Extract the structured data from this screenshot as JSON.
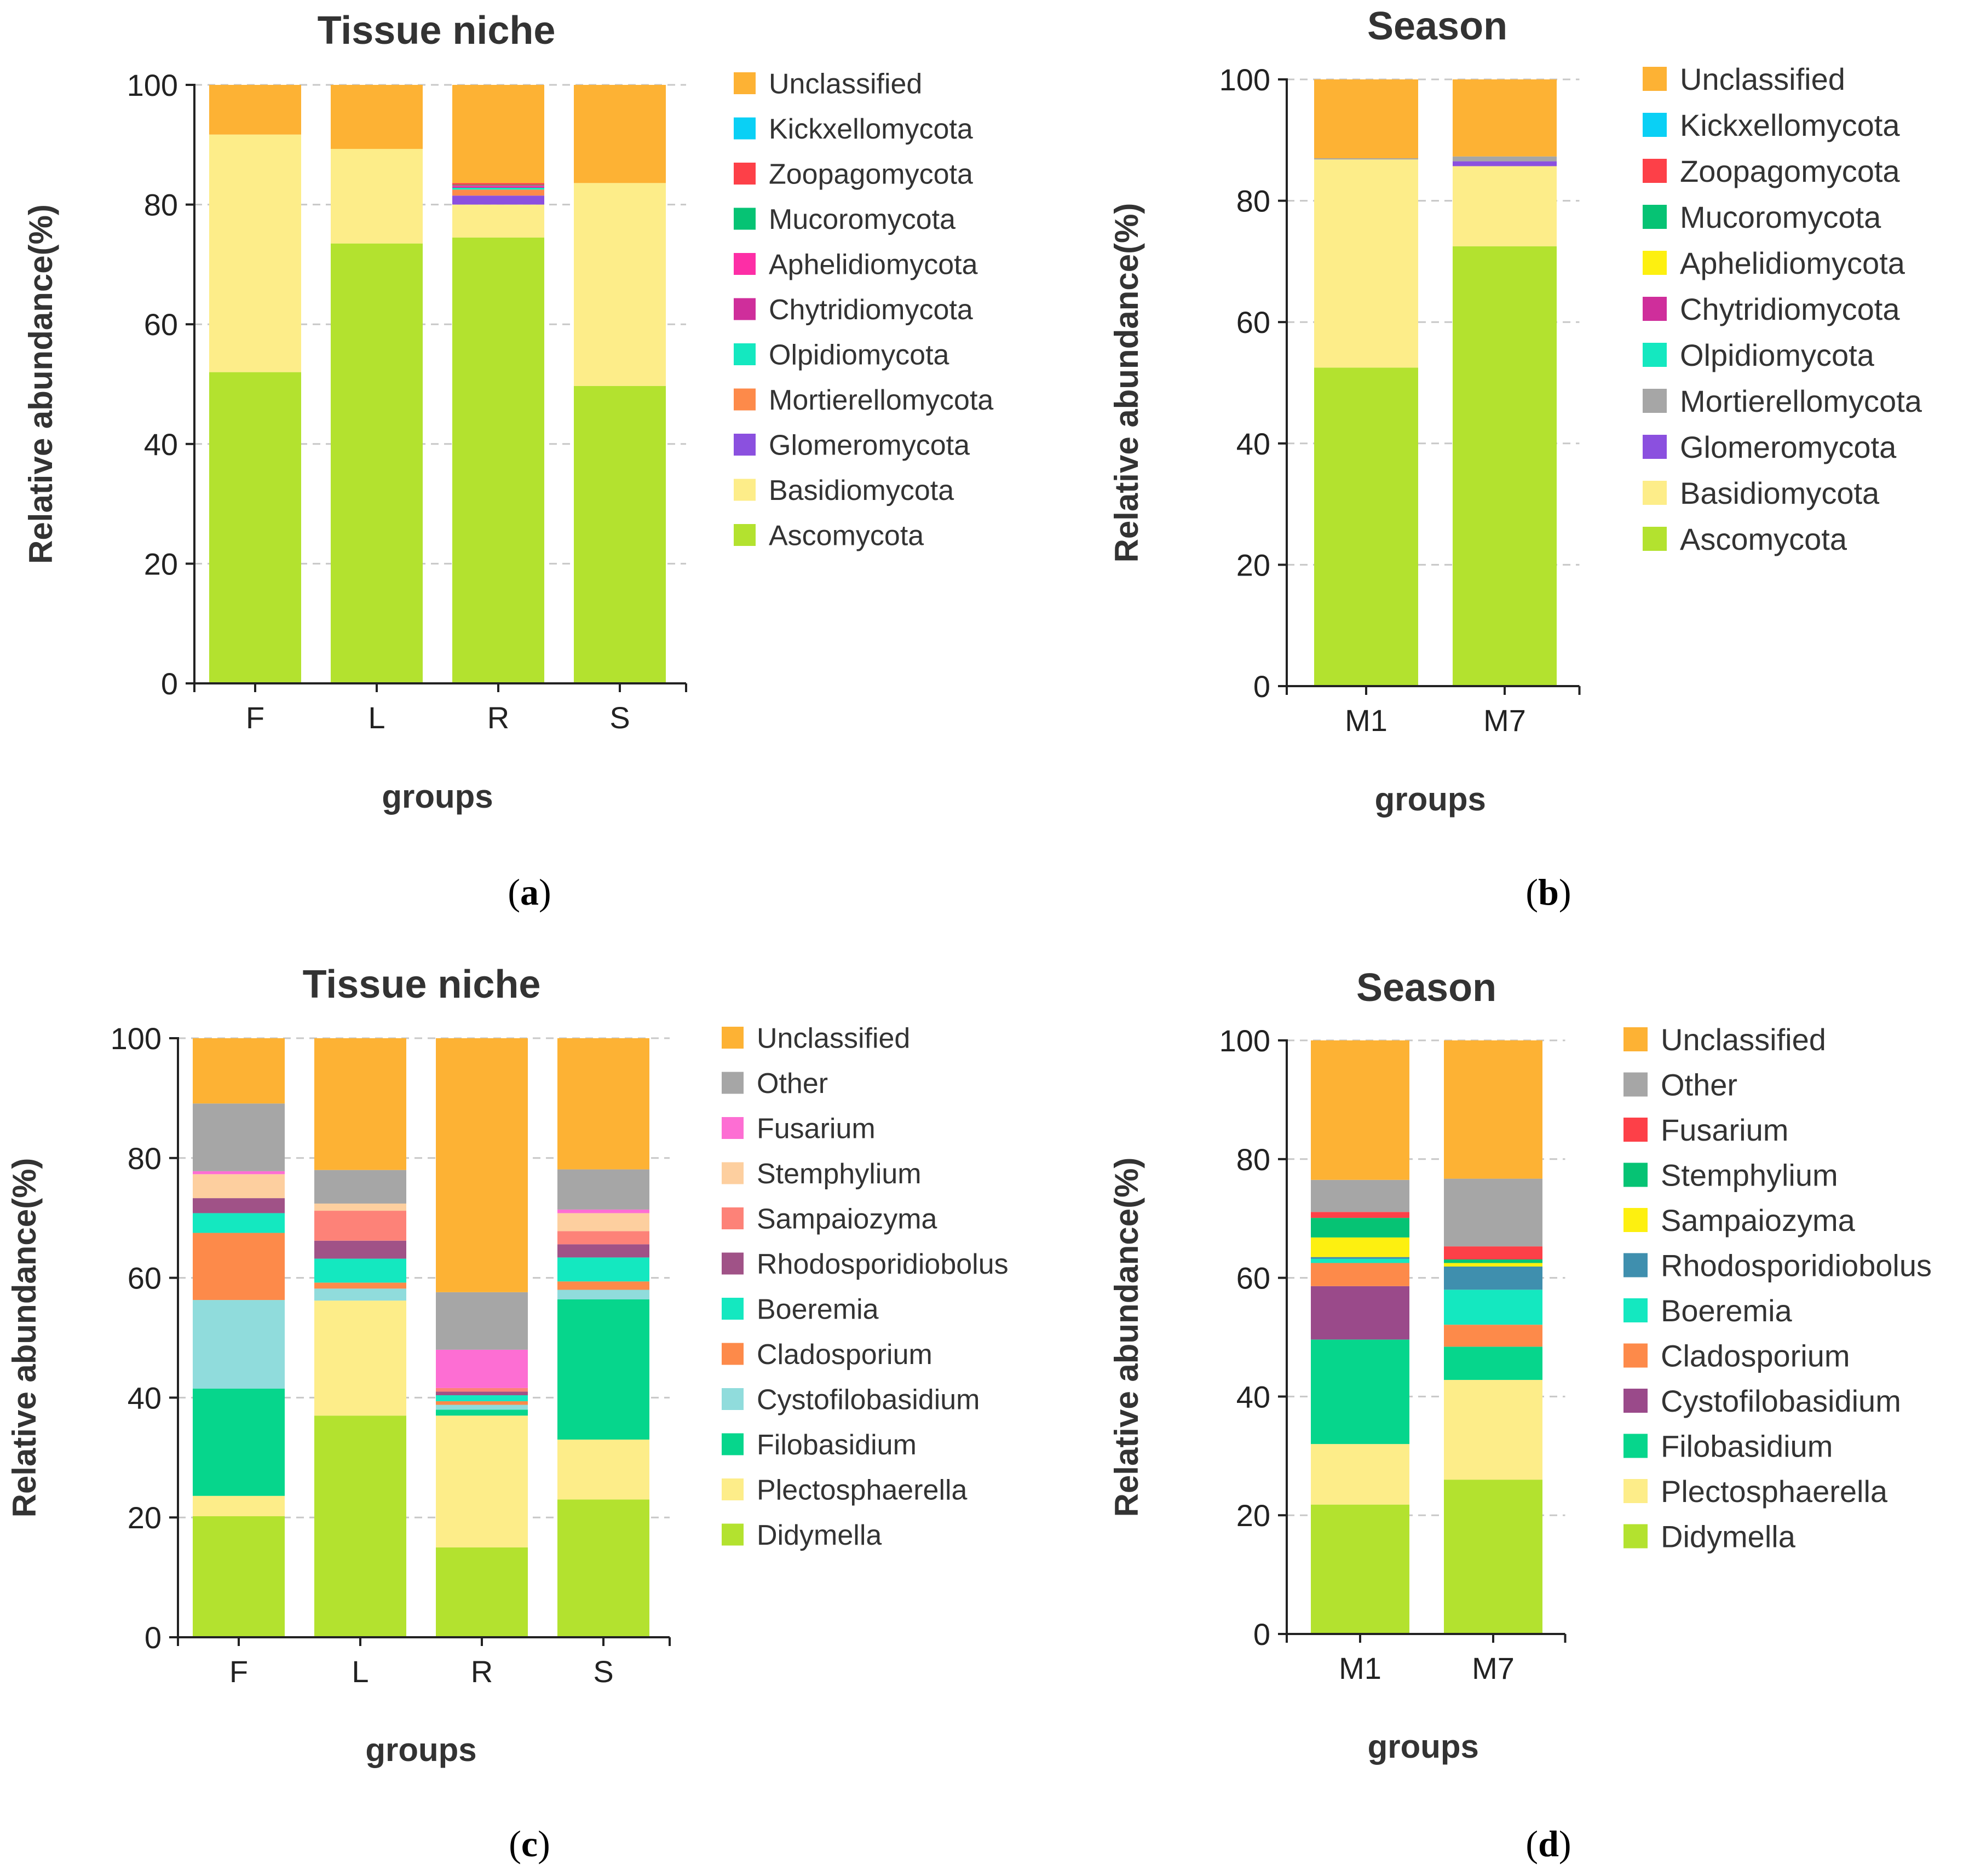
{
  "captions": {
    "a": "a",
    "b": "b",
    "c": "c",
    "d": "d"
  },
  "chart_data": [
    {
      "panel": "a",
      "type": "bar",
      "stacked": true,
      "title": "Tissue niche",
      "xlabel": "groups",
      "ylabel": "Relative abundance(%)",
      "ylim": [
        0,
        100
      ],
      "yticks": [
        0,
        20,
        40,
        60,
        80,
        100
      ],
      "grid": "dashed horizontal",
      "legend_position": "right",
      "categories": [
        "F",
        "L",
        "R",
        "S"
      ],
      "series": [
        {
          "name": "Ascomycota",
          "color": "#b3e22f",
          "values": [
            52.0,
            73.5,
            74.5,
            49.7
          ]
        },
        {
          "name": "Basidiomycota",
          "color": "#fded89",
          "values": [
            39.7,
            15.8,
            5.5,
            33.9
          ]
        },
        {
          "name": "Glomeromycota",
          "color": "#8b50df",
          "values": [
            0.0,
            0.0,
            1.5,
            0.0
          ]
        },
        {
          "name": "Mortierellomycota",
          "color": "#fd8a4a",
          "values": [
            0.0,
            0.0,
            1.0,
            0.0
          ]
        },
        {
          "name": "Olpidiomycota",
          "color": "#14e8c0",
          "values": [
            0.0,
            0.0,
            0.3,
            0.0
          ]
        },
        {
          "name": "Chytridiomycota",
          "color": "#cf2e9b",
          "values": [
            0.0,
            0.0,
            0.2,
            0.0
          ]
        },
        {
          "name": "Aphelidiomycota",
          "color": "#fd2ea6",
          "values": [
            0.0,
            0.0,
            0.2,
            0.0
          ]
        },
        {
          "name": "Mucoromycota",
          "color": "#06c374",
          "values": [
            0.0,
            0.0,
            0.1,
            0.0
          ]
        },
        {
          "name": "Zoopagomycota",
          "color": "#fd4048",
          "values": [
            0.0,
            0.0,
            0.3,
            0.0
          ]
        },
        {
          "name": "Kickxellomycota",
          "color": "#0ad0f5",
          "values": [
            0.0,
            0.0,
            0.0,
            0.0
          ]
        },
        {
          "name": "Unclassified",
          "color": "#fdb234",
          "values": [
            8.3,
            10.7,
            16.4,
            16.4
          ]
        }
      ]
    },
    {
      "panel": "b",
      "type": "bar",
      "stacked": true,
      "title": "Season",
      "xlabel": "groups",
      "ylabel": "Relative abundance(%)",
      "ylim": [
        0,
        100
      ],
      "yticks": [
        0,
        20,
        40,
        60,
        80,
        100
      ],
      "grid": "dashed horizontal",
      "legend_position": "right",
      "categories": [
        "M1",
        "M7"
      ],
      "series": [
        {
          "name": "Ascomycota",
          "color": "#b3e22f",
          "values": [
            52.5,
            72.5
          ]
        },
        {
          "name": "Basidiomycota",
          "color": "#fded89",
          "values": [
            34.3,
            13.2
          ]
        },
        {
          "name": "Glomeromycota",
          "color": "#8b50df",
          "values": [
            0.0,
            0.8
          ]
        },
        {
          "name": "Mortierellomycota",
          "color": "#a6a6a6",
          "values": [
            0.2,
            0.8
          ]
        },
        {
          "name": "Olpidiomycota",
          "color": "#14e8c0",
          "values": [
            0.0,
            0.0
          ]
        },
        {
          "name": "Chytridiomycota",
          "color": "#cf2e9b",
          "values": [
            0.0,
            0.0
          ]
        },
        {
          "name": "Aphelidiomycota",
          "color": "#fdf010",
          "values": [
            0.0,
            0.0
          ]
        },
        {
          "name": "Mucoromycota",
          "color": "#06c374",
          "values": [
            0.0,
            0.0
          ]
        },
        {
          "name": "Zoopagomycota",
          "color": "#fd4048",
          "values": [
            0.0,
            0.0
          ]
        },
        {
          "name": "Kickxellomycota",
          "color": "#0ad0f5",
          "values": [
            0.0,
            0.0
          ]
        },
        {
          "name": "Unclassified",
          "color": "#fdb234",
          "values": [
            13.0,
            12.7
          ]
        }
      ]
    },
    {
      "panel": "c",
      "type": "bar",
      "stacked": true,
      "title": "Tissue niche",
      "xlabel": "groups",
      "ylabel": "Relative abundance(%)",
      "ylim": [
        0,
        100
      ],
      "yticks": [
        0,
        20,
        40,
        60,
        80,
        100
      ],
      "grid": "dashed horizontal",
      "legend_position": "right",
      "categories": [
        "F",
        "L",
        "R",
        "S"
      ],
      "series": [
        {
          "name": "Didymella",
          "color": "#b3e22f",
          "values": [
            20.2,
            37.0,
            15.0,
            23.0
          ]
        },
        {
          "name": "Plectosphaerella",
          "color": "#fded89",
          "values": [
            3.4,
            19.2,
            22.0,
            10.0
          ]
        },
        {
          "name": "Filobasidium",
          "color": "#06d68c",
          "values": [
            17.9,
            0.0,
            1.0,
            23.4
          ]
        },
        {
          "name": "Cystofilobasidium",
          "color": "#90dcdc",
          "values": [
            14.8,
            2.0,
            0.8,
            1.6
          ]
        },
        {
          "name": "Cladosporium",
          "color": "#fd8a4a",
          "values": [
            11.2,
            1.0,
            0.6,
            1.4
          ]
        },
        {
          "name": "Boeremia",
          "color": "#14e8c0",
          "values": [
            3.3,
            4.0,
            1.0,
            4.0
          ]
        },
        {
          "name": "Rhodosporidiobolus",
          "color": "#a05287",
          "values": [
            2.5,
            3.0,
            0.6,
            2.2
          ]
        },
        {
          "name": "Sampaiozyma",
          "color": "#fd8278",
          "values": [
            0.0,
            5.0,
            0.6,
            2.2
          ]
        },
        {
          "name": "Stemphylium",
          "color": "#fdcf9f",
          "values": [
            4.0,
            1.2,
            0.0,
            3.0
          ]
        },
        {
          "name": "Fusarium",
          "color": "#fd6ed3",
          "values": [
            0.5,
            0.0,
            6.4,
            0.6
          ]
        },
        {
          "name": "Other",
          "color": "#a6a6a6",
          "values": [
            11.3,
            5.6,
            9.6,
            6.7
          ]
        },
        {
          "name": "Unclassified",
          "color": "#fdb234",
          "values": [
            10.9,
            22.0,
            42.4,
            21.9
          ]
        }
      ]
    },
    {
      "panel": "d",
      "type": "bar",
      "stacked": true,
      "title": "Season",
      "xlabel": "groups",
      "ylabel": "Relative abundance(%)",
      "ylim": [
        0,
        100
      ],
      "yticks": [
        0,
        20,
        40,
        60,
        80,
        100
      ],
      "grid": "dashed horizontal",
      "legend_position": "right",
      "categories": [
        "M1",
        "M7"
      ],
      "series": [
        {
          "name": "Didymella",
          "color": "#b3e22f",
          "values": [
            21.8,
            26.0
          ]
        },
        {
          "name": "Plectosphaerella",
          "color": "#fded89",
          "values": [
            10.2,
            16.8
          ]
        },
        {
          "name": "Filobasidium",
          "color": "#06d68c",
          "values": [
            17.6,
            5.6
          ]
        },
        {
          "name": "Cystofilobasidium",
          "color": "#9a4a8a",
          "values": [
            9.0,
            0.0
          ]
        },
        {
          "name": "Cladosporium",
          "color": "#fd8a4a",
          "values": [
            3.9,
            3.7
          ]
        },
        {
          "name": "Boeremia",
          "color": "#14e8c0",
          "values": [
            0.7,
            5.9
          ]
        },
        {
          "name": "Rhodosporidiobolus",
          "color": "#3f8fae",
          "values": [
            0.3,
            3.9
          ]
        },
        {
          "name": "Sampaiozyma",
          "color": "#fdf010",
          "values": [
            3.3,
            0.6
          ]
        },
        {
          "name": "Stemphylium",
          "color": "#06c374",
          "values": [
            3.3,
            0.6
          ]
        },
        {
          "name": "Fusarium",
          "color": "#fd4048",
          "values": [
            1.0,
            2.2
          ]
        },
        {
          "name": "Other",
          "color": "#a6a6a6",
          "values": [
            5.4,
            11.4
          ]
        },
        {
          "name": "Unclassified",
          "color": "#fdb234",
          "values": [
            23.5,
            23.3
          ]
        }
      ]
    }
  ]
}
